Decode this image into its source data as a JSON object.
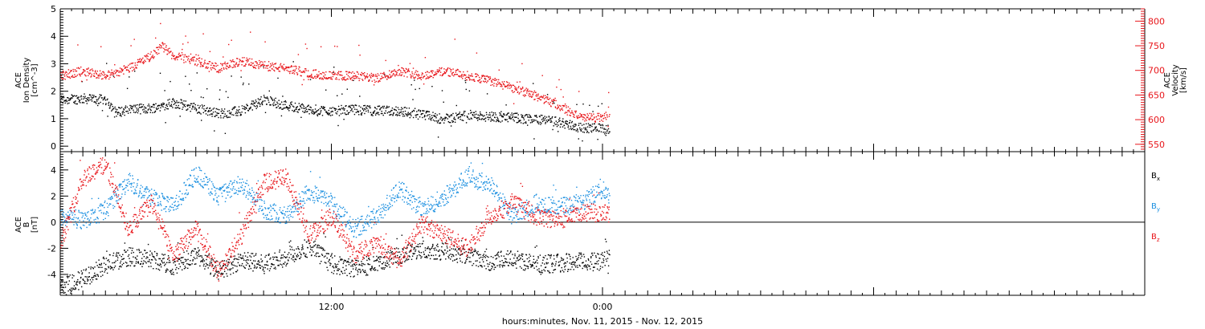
{
  "xlabel": "hours:minutes, Nov. 11, 2015 - Nov. 12, 2015",
  "x_tick_labels": [
    "12:00",
    "0:00"
  ],
  "colors": {
    "black": "#000000",
    "blue": "#1a8fe0",
    "red": "#e8161b"
  },
  "chart_data": [
    {
      "type": "scatter",
      "panel": "top",
      "ylabel": [
        "ACE",
        "Ion Density",
        "[cm^-3]"
      ],
      "ylabel2": [
        "ACE",
        "Velocity",
        "[km/s]"
      ],
      "xlim_hours": [
        0,
        48
      ],
      "ylim": [
        -0.2,
        5.0
      ],
      "y2lim": [
        535,
        825
      ],
      "yticks": [
        0,
        1,
        2,
        3,
        4,
        5
      ],
      "y2ticks": [
        550,
        600,
        650,
        700,
        750,
        800
      ],
      "series": [
        {
          "name": "Ion Density",
          "axis": "left",
          "color": "black",
          "x": [
            0.0,
            1.0,
            2.0,
            2.5,
            3.0,
            4.0,
            5.0,
            6.0,
            7.0,
            8.0,
            9.0,
            10.0,
            11.0,
            12.0,
            13.0,
            14.0,
            15.0,
            16.0,
            17.0,
            18.0,
            19.0,
            20.0,
            21.0,
            22.0,
            23.0,
            24.0,
            24.3
          ],
          "y": [
            1.7,
            1.75,
            1.7,
            1.25,
            1.35,
            1.4,
            1.6,
            1.4,
            1.2,
            1.3,
            1.7,
            1.5,
            1.35,
            1.3,
            1.35,
            1.3,
            1.3,
            1.15,
            1.0,
            1.15,
            1.1,
            1.05,
            1.0,
            0.9,
            0.7,
            0.65,
            0.6
          ]
        },
        {
          "name": "Velocity",
          "axis": "right",
          "color": "red",
          "x": [
            0.0,
            1.0,
            2.0,
            3.0,
            4.0,
            4.5,
            5.0,
            6.0,
            7.0,
            8.0,
            9.0,
            10.0,
            11.0,
            12.0,
            13.0,
            14.0,
            15.0,
            16.0,
            17.0,
            18.0,
            19.0,
            20.0,
            21.0,
            22.0,
            23.0,
            24.0,
            24.3
          ],
          "y": [
            690,
            700,
            690,
            705,
            730,
            750,
            730,
            720,
            705,
            720,
            710,
            705,
            695,
            690,
            690,
            685,
            700,
            690,
            700,
            690,
            680,
            665,
            650,
            630,
            605,
            605,
            610
          ]
        }
      ]
    },
    {
      "type": "scatter",
      "panel": "bottom",
      "ylabel": [
        "ACE",
        "B",
        "[nT]"
      ],
      "xlim_hours": [
        0,
        48
      ],
      "ylim": [
        -5.6,
        5.4
      ],
      "yticks": [
        -4,
        -2,
        0,
        2,
        4
      ],
      "zero_line": true,
      "series": [
        {
          "name": "Bx",
          "color": "black",
          "x": [
            0,
            1,
            2,
            3,
            4,
            5,
            6,
            7,
            8,
            9,
            10,
            11,
            12,
            13,
            14,
            15,
            16,
            17,
            18,
            19,
            20,
            21,
            22,
            23,
            24,
            24.3
          ],
          "y": [
            -5.0,
            -4.3,
            -3.2,
            -2.6,
            -2.8,
            -3.3,
            -2.5,
            -3.7,
            -2.9,
            -3.2,
            -2.6,
            -1.8,
            -3.2,
            -3.5,
            -3.2,
            -2.5,
            -2.0,
            -2.2,
            -2.5,
            -3.0,
            -2.7,
            -3.2,
            -3.1,
            -3.0,
            -3.0,
            -2.6
          ]
        },
        {
          "name": "By",
          "color": "blue",
          "x": [
            0,
            1,
            2,
            3,
            4,
            5,
            6,
            7,
            8,
            9,
            10,
            11,
            12,
            13,
            14,
            15,
            16,
            17,
            18,
            19,
            20,
            21,
            22,
            23,
            24,
            24.3
          ],
          "y": [
            0.5,
            0.2,
            1.0,
            3.2,
            2.0,
            1.2,
            3.8,
            2.0,
            3.0,
            1.0,
            0.5,
            2.4,
            1.5,
            -0.5,
            0.5,
            2.6,
            1.0,
            2.0,
            3.5,
            3.0,
            0.5,
            1.5,
            1.2,
            1.4,
            2.6,
            2.0
          ]
        },
        {
          "name": "Bz",
          "color": "red",
          "x": [
            0,
            1,
            2,
            3,
            4,
            5,
            6,
            7,
            8,
            9,
            10,
            11,
            12,
            13,
            14,
            15,
            16,
            17,
            18,
            19,
            20,
            21,
            22,
            23,
            24,
            24.3
          ],
          "y": [
            -1.5,
            3.5,
            4.5,
            -0.5,
            1.5,
            -2.5,
            -0.5,
            -3.8,
            -1.0,
            3.0,
            3.5,
            -1.0,
            0.5,
            -2.5,
            -1.5,
            -3.0,
            0.0,
            -1.0,
            -2.0,
            0.5,
            1.5,
            0.5,
            0.2,
            0.7,
            0.8,
            0.6
          ]
        }
      ]
    }
  ],
  "legend": [
    {
      "label": "B",
      "sub": "x",
      "color": "black"
    },
    {
      "label": "B",
      "sub": "y",
      "color": "blue"
    },
    {
      "label": "B",
      "sub": "z",
      "color": "red"
    }
  ]
}
